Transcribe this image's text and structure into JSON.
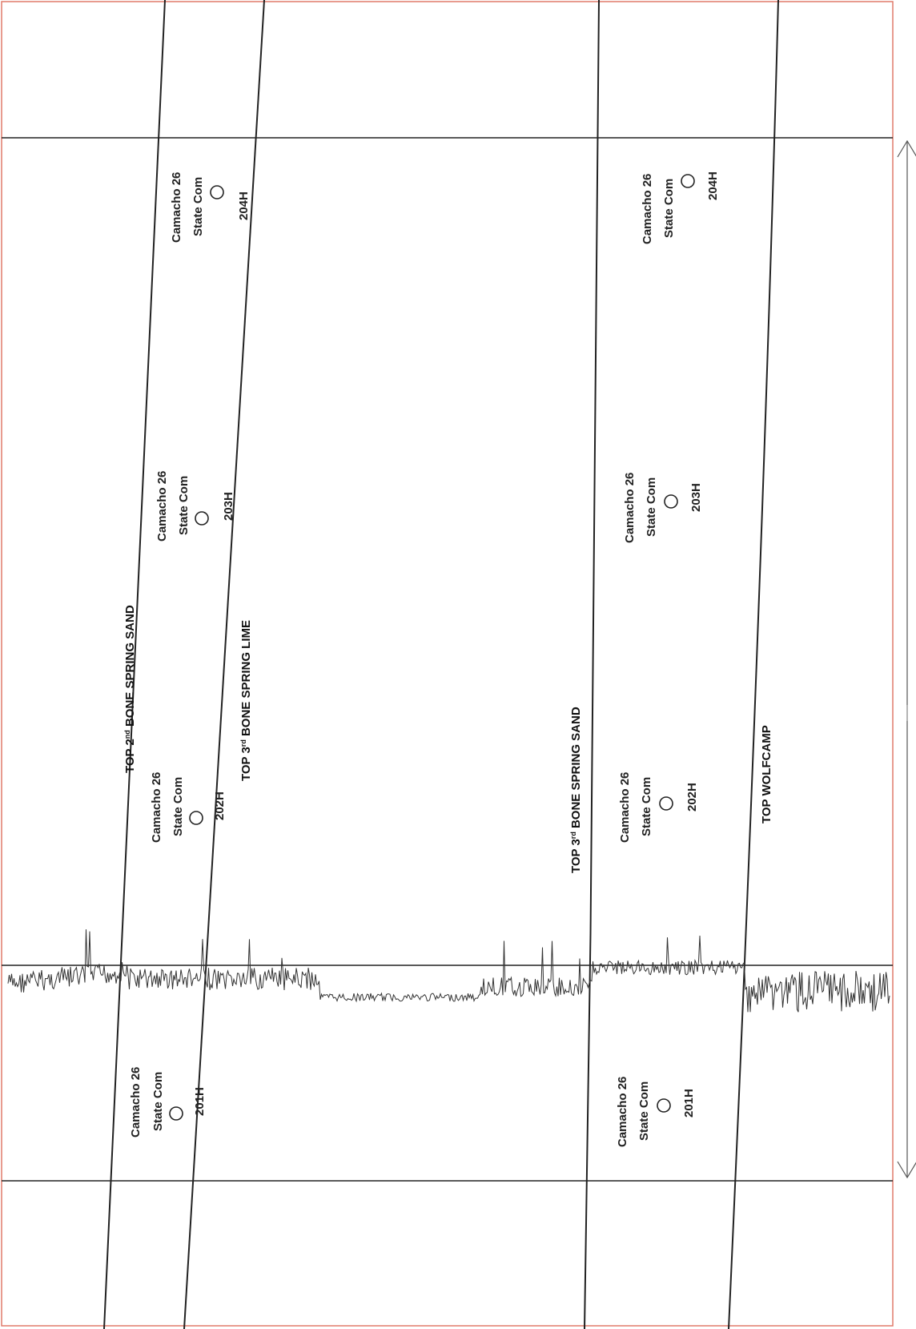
{
  "formations": [
    {
      "id": "top2bss",
      "base": "TOP 2",
      "sup": "nd",
      "rest": " BONE SPRING SAND"
    },
    {
      "id": "top3bsl",
      "base": "TOP 3",
      "sup": "rd",
      "rest": " BONE SPRING LIME"
    },
    {
      "id": "top3bss",
      "base": "TOP 3",
      "sup": "rd",
      "rest": " BONE SPRING SAND"
    },
    {
      "id": "topwc",
      "base": "TOP WOLFCAMP",
      "sup": "",
      "rest": ""
    }
  ],
  "wells": {
    "upper": [
      {
        "line1": "Camacho 26",
        "line2": "State Com",
        "number": "201H"
      },
      {
        "line1": "Camacho 26",
        "line2": "State Com",
        "number": "202H"
      },
      {
        "line1": "Camacho 26",
        "line2": "State Com",
        "number": "203H"
      },
      {
        "line1": "Camacho 26",
        "line2": "State Com",
        "number": "204H"
      }
    ],
    "lower": [
      {
        "line1": "Camacho 26",
        "line2": "State Com",
        "number": "201H"
      },
      {
        "line1": "Camacho 26",
        "line2": "State Com",
        "number": "202H"
      },
      {
        "line1": "Camacho 26",
        "line2": "State Com",
        "number": "203H"
      },
      {
        "line1": "Camacho 26",
        "line2": "State Com",
        "number": "204H"
      }
    ]
  },
  "colors": {
    "border": "#e07a6a",
    "line": "#222222",
    "log": "#333333"
  }
}
